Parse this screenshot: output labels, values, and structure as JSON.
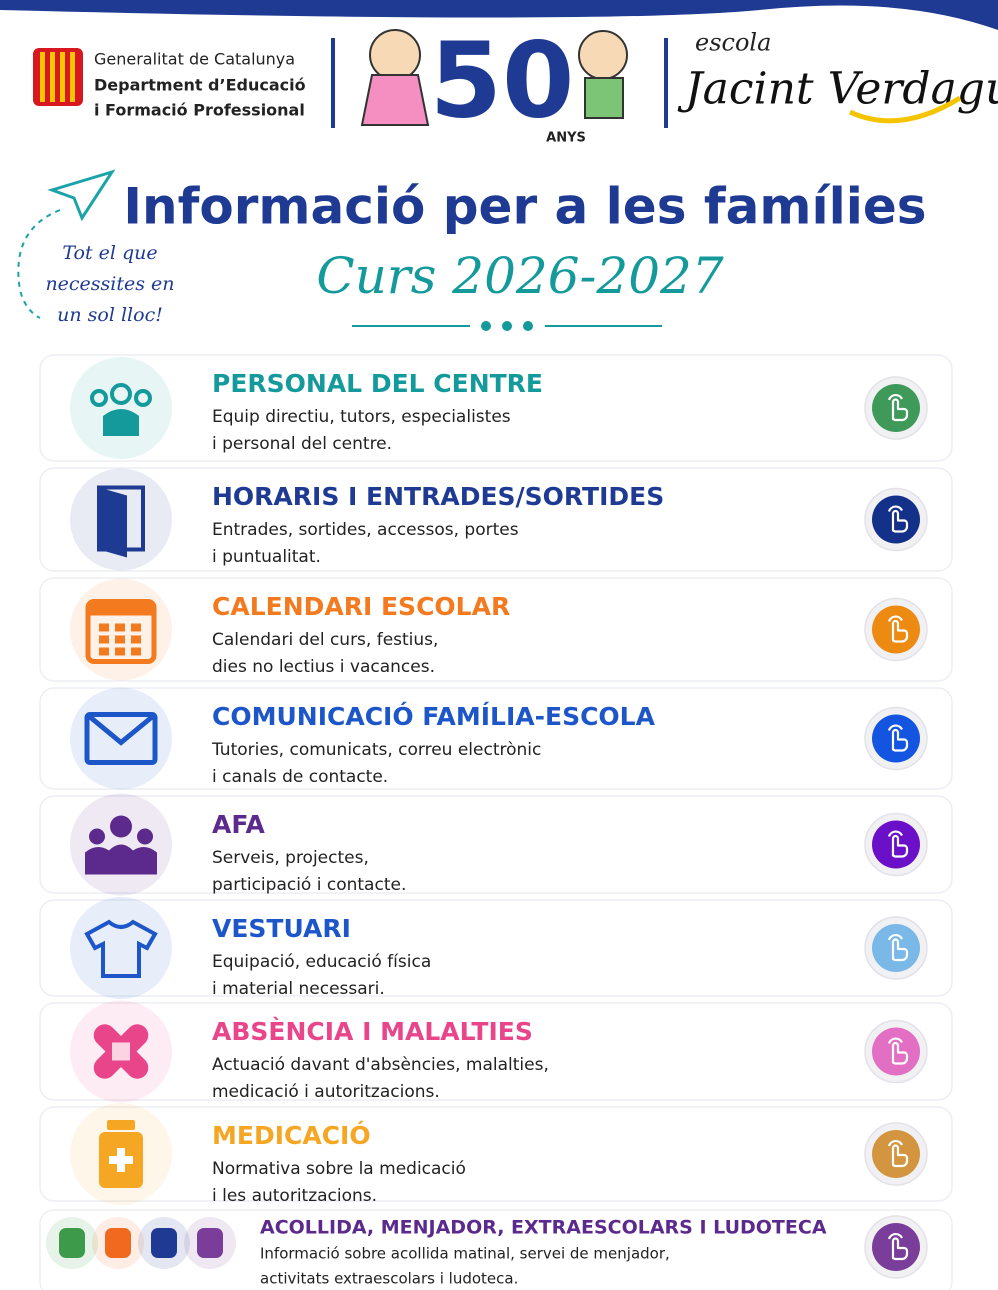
{
  "header": {
    "org_lines": [
      "Generalitat de Catalunya",
      "Department d’Educació",
      "i Formació Professional"
    ],
    "anniversary": "50",
    "anniversary_label": "ANYS",
    "school_prefix": "escola",
    "school_name": "Jacint Verdaguer"
  },
  "title": "Informació per a les famílies",
  "subtitle": "Curs 2026-2027",
  "side_note": [
    "Tot el que",
    "necessites en",
    "un sol lloc!"
  ],
  "items": [
    {
      "title": "PERSONAL DEL CENTRE",
      "lines": [
        "Equip directiu, tutors, especialistes",
        "i personal del centre."
      ],
      "color": "#159a9c",
      "button_color": "#3f9a5a"
    },
    {
      "title": "HORARIS I ENTRADES/SORTIDES",
      "lines": [
        "Entrades, sortides, accessos, portes",
        "i puntualitat."
      ],
      "color": "#1f3a93",
      "button_color": "#14318a"
    },
    {
      "title": "CALENDARI ESCOLAR",
      "lines": [
        "Calendari del curs, festius,",
        "dies no lectius i vacances."
      ],
      "color": "#f47a20",
      "button_color": "#ec8a12"
    },
    {
      "title": "COMUNICACIÓ FAMÍLIA-ESCOLA",
      "lines": [
        "Tutories, comunicats, correu electrònic",
        "i canals de contacte."
      ],
      "color": "#1d56c9",
      "button_color": "#1355e0"
    },
    {
      "title": "AFA",
      "lines": [
        "Serveis, projectes,",
        "participació i contacte."
      ],
      "color": "#5b2a8c",
      "button_color": "#6a10c8"
    },
    {
      "title": "VESTUARI",
      "lines": [
        "Equipació, educació física",
        "i material necessari."
      ],
      "color": "#1d56c9",
      "button_color": "#7ab8e8"
    },
    {
      "title": "ABSÈNCIA I MALALTIES",
      "lines": [
        "Actuació davant d'absències, malalties,",
        "medicació i autoritzacions."
      ],
      "color": "#e8458b",
      "button_color": "#e36fc4"
    },
    {
      "title": "MEDICACIÓ",
      "lines": [
        "Normativa sobre la medicació",
        "i les autoritzacions."
      ],
      "color": "#f5a623",
      "button_color": "#d39540"
    },
    {
      "title": "ACOLLIDA, MENJADOR, EXTRAESCOLARS I LUDOTECA",
      "lines": [
        "Informació sobre acollida matinal, servei de menjador,",
        "activitats extraescolars i ludoteca."
      ],
      "color": "#5b2a8c",
      "button_color": "#7a3e9a"
    }
  ]
}
